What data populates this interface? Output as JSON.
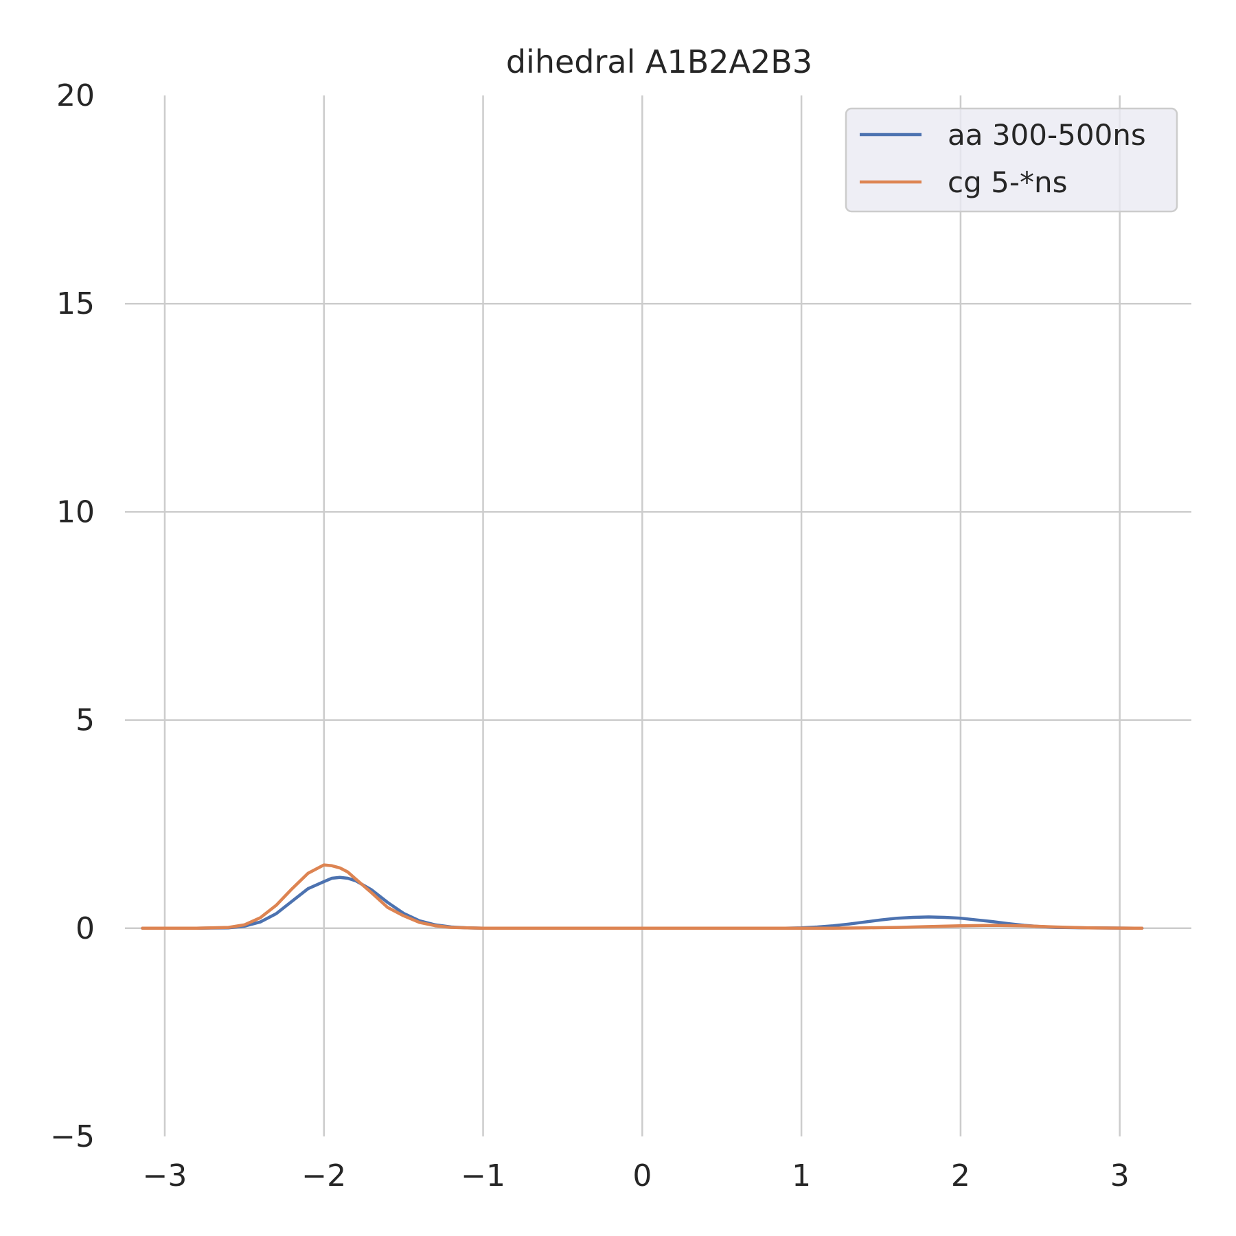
{
  "chart_data": {
    "type": "line",
    "title": "dihedral A1B2A2B3",
    "xlabel": "",
    "ylabel": "",
    "xlim": [
      -3.25,
      3.45
    ],
    "ylim": [
      -5,
      20
    ],
    "xticks": [
      -3,
      -2,
      -1,
      0,
      1,
      2,
      3
    ],
    "xtick_labels": [
      "−3",
      "−2",
      "−1",
      "0",
      "1",
      "2",
      "3"
    ],
    "yticks": [
      -5,
      0,
      5,
      10,
      15,
      20
    ],
    "ytick_labels": [
      "−5",
      "0",
      "5",
      "10",
      "15",
      "20"
    ],
    "grid": true,
    "legend_position": "top-right",
    "series": [
      {
        "name": "aa 300-500ns",
        "color": "#4c72b0",
        "x": [
          -3.14,
          -2.8,
          -2.6,
          -2.5,
          -2.4,
          -2.3,
          -2.2,
          -2.1,
          -2.0,
          -1.95,
          -1.9,
          -1.85,
          -1.8,
          -1.7,
          -1.6,
          -1.5,
          -1.4,
          -1.3,
          -1.2,
          -1.1,
          -1.0,
          -0.5,
          0,
          0.5,
          0.9,
          1.0,
          1.1,
          1.2,
          1.3,
          1.4,
          1.5,
          1.6,
          1.7,
          1.8,
          1.9,
          2.0,
          2.1,
          2.2,
          2.3,
          2.4,
          2.5,
          2.6,
          2.8,
          3.14
        ],
        "y": [
          0,
          0,
          0.01,
          0.05,
          0.15,
          0.35,
          0.65,
          0.95,
          1.12,
          1.2,
          1.22,
          1.2,
          1.14,
          0.92,
          0.62,
          0.36,
          0.18,
          0.08,
          0.03,
          0.01,
          0,
          0,
          0,
          0,
          0,
          0.01,
          0.03,
          0.06,
          0.1,
          0.15,
          0.2,
          0.24,
          0.26,
          0.27,
          0.26,
          0.24,
          0.2,
          0.16,
          0.11,
          0.07,
          0.04,
          0.02,
          0.01,
          0
        ]
      },
      {
        "name": "cg 5-*ns",
        "color": "#dd8452",
        "x": [
          -3.14,
          -2.8,
          -2.6,
          -2.5,
          -2.4,
          -2.3,
          -2.2,
          -2.1,
          -2.0,
          -1.95,
          -1.9,
          -1.85,
          -1.8,
          -1.7,
          -1.6,
          -1.5,
          -1.4,
          -1.3,
          -1.2,
          -1.1,
          -1.0,
          -0.5,
          0,
          0.5,
          1.0,
          1.2,
          1.4,
          1.6,
          1.8,
          2.0,
          2.2,
          2.4,
          2.6,
          2.8,
          3.14
        ],
        "y": [
          0,
          0,
          0.02,
          0.08,
          0.25,
          0.55,
          0.95,
          1.32,
          1.52,
          1.5,
          1.45,
          1.35,
          1.18,
          0.85,
          0.5,
          0.3,
          0.14,
          0.06,
          0.02,
          0.01,
          0,
          0,
          0,
          0,
          0,
          0,
          0.01,
          0.02,
          0.04,
          0.06,
          0.07,
          0.06,
          0.03,
          0.01,
          0
        ]
      }
    ]
  }
}
